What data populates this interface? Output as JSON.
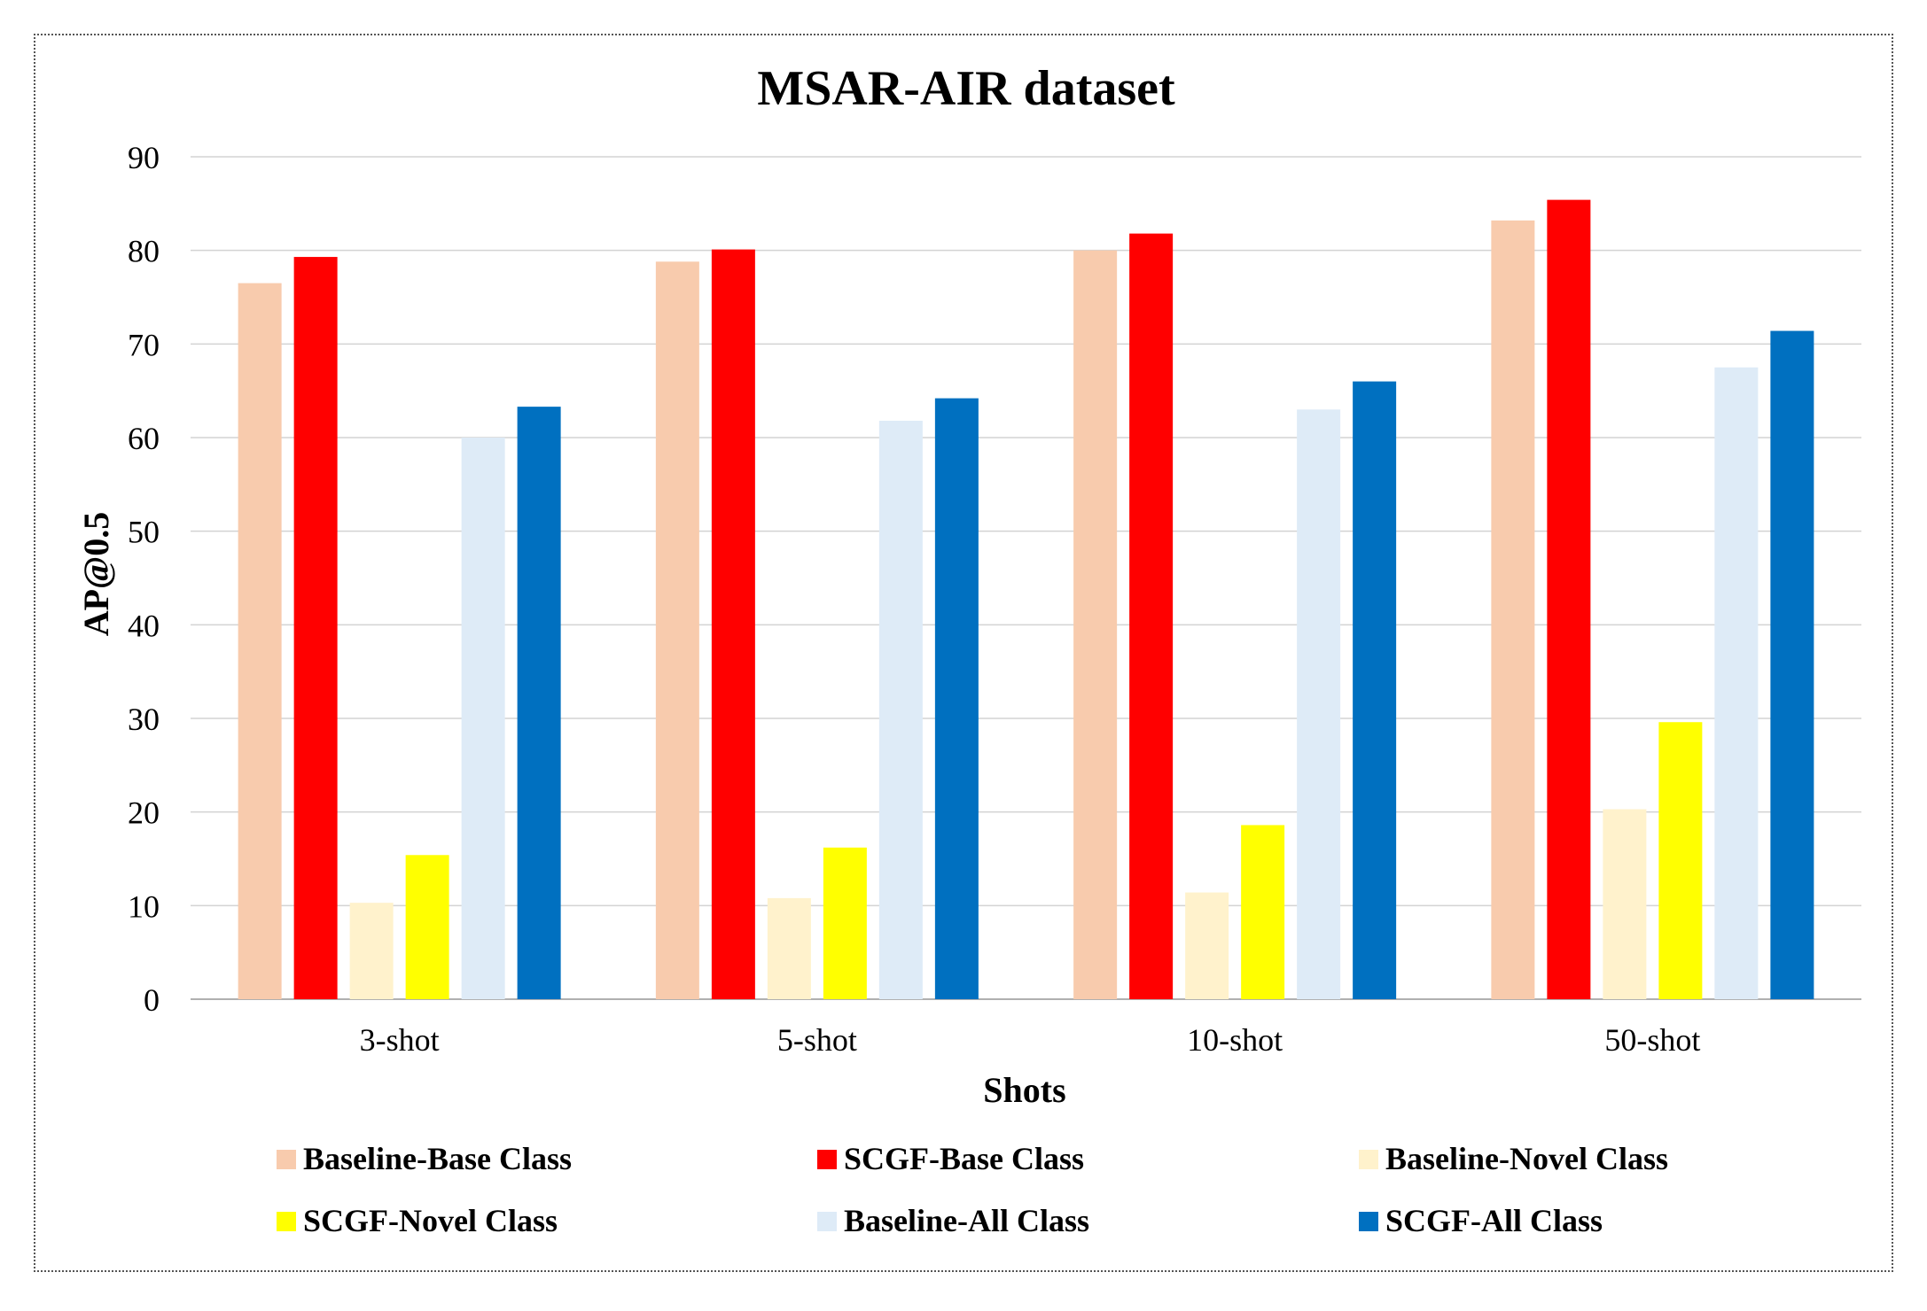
{
  "chart_data": {
    "type": "bar",
    "title": "MSAR-AIR dataset",
    "xlabel": "Shots",
    "ylabel": "AP@0.5",
    "ylim": [
      0,
      90
    ],
    "yticks": [
      0,
      10,
      20,
      30,
      40,
      50,
      60,
      70,
      80,
      90
    ],
    "grid": true,
    "legend_position": "bottom",
    "categories": [
      "3-shot",
      "5-shot",
      "10-shot",
      "50-shot"
    ],
    "series": [
      {
        "name": "Baseline-Base Class",
        "color": "#F8CBAD",
        "values": [
          76.5,
          78.8,
          80.0,
          83.2
        ]
      },
      {
        "name": "SCGF-Base Class",
        "color": "#FF0000",
        "values": [
          79.3,
          80.1,
          81.8,
          85.4
        ]
      },
      {
        "name": "Baseline-Novel Class",
        "color": "#FFF2CC",
        "values": [
          10.3,
          10.8,
          11.4,
          20.3
        ]
      },
      {
        "name": "SCGF-Novel Class",
        "color": "#FFFF00",
        "values": [
          15.4,
          16.2,
          18.6,
          29.6
        ]
      },
      {
        "name": "Baseline-All Class",
        "color": "#DEEBF7",
        "values": [
          60.0,
          61.8,
          63.0,
          67.5
        ]
      },
      {
        "name": "SCGF-All Class",
        "color": "#0070C0",
        "values": [
          63.3,
          64.2,
          66.0,
          71.4
        ]
      }
    ]
  }
}
